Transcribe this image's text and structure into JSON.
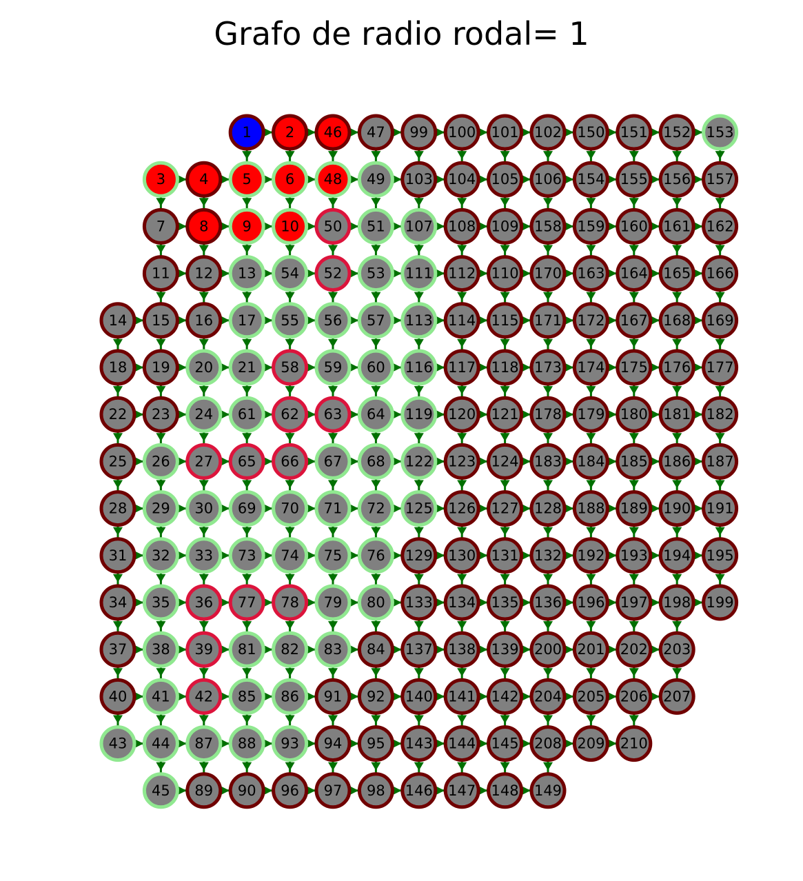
{
  "title": "Grafo de radio rodal= 1",
  "colors": {
    "edge": "#007000",
    "node_fill_default": "#808080",
    "fill_source": "#0000ff",
    "fill_reached": "#ff0000",
    "border_dark": "#700000",
    "border_light": "#90e890",
    "border_crimson": "#dc143c"
  },
  "rows": [
    [
      null,
      null,
      null,
      {
        "id": 1,
        "f": "source",
        "b": "dark"
      },
      {
        "id": 2,
        "f": "reached",
        "b": "dark"
      },
      {
        "id": 46,
        "f": "reached",
        "b": "dark"
      },
      {
        "id": 47,
        "b": "dark"
      },
      {
        "id": 99,
        "b": "dark"
      },
      {
        "id": 100,
        "b": "dark"
      },
      {
        "id": 101,
        "b": "dark"
      },
      {
        "id": 102,
        "b": "dark"
      },
      {
        "id": 150,
        "b": "dark"
      },
      {
        "id": 151,
        "b": "dark"
      },
      {
        "id": 152,
        "b": "dark"
      },
      {
        "id": 153,
        "b": "light"
      }
    ],
    [
      null,
      {
        "id": 3,
        "f": "reached",
        "b": "light"
      },
      {
        "id": 4,
        "f": "reached",
        "b": "dark"
      },
      {
        "id": 5,
        "f": "reached",
        "b": "light"
      },
      {
        "id": 6,
        "f": "reached",
        "b": "light"
      },
      {
        "id": 48,
        "f": "reached",
        "b": "light"
      },
      {
        "id": 49,
        "b": "light"
      },
      {
        "id": 103,
        "b": "dark"
      },
      {
        "id": 104,
        "b": "dark"
      },
      {
        "id": 105,
        "b": "dark"
      },
      {
        "id": 106,
        "b": "dark"
      },
      {
        "id": 154,
        "b": "dark"
      },
      {
        "id": 155,
        "b": "dark"
      },
      {
        "id": 156,
        "b": "dark"
      },
      {
        "id": 157,
        "b": "dark"
      }
    ],
    [
      null,
      {
        "id": 7,
        "b": "dark"
      },
      {
        "id": 8,
        "f": "reached",
        "b": "dark"
      },
      {
        "id": 9,
        "f": "reached",
        "b": "light"
      },
      {
        "id": 10,
        "f": "reached",
        "b": "light"
      },
      {
        "id": 50,
        "b": "crimson"
      },
      {
        "id": 51,
        "b": "light"
      },
      {
        "id": 107,
        "b": "light"
      },
      {
        "id": 108,
        "b": "dark"
      },
      {
        "id": 109,
        "b": "dark"
      },
      {
        "id": 158,
        "b": "dark"
      },
      {
        "id": 159,
        "b": "dark"
      },
      {
        "id": 160,
        "b": "dark"
      },
      {
        "id": 161,
        "b": "dark"
      },
      {
        "id": 162,
        "b": "dark"
      }
    ],
    [
      null,
      {
        "id": 11,
        "b": "dark"
      },
      {
        "id": 12,
        "b": "dark"
      },
      {
        "id": 13,
        "b": "light"
      },
      {
        "id": 54,
        "b": "light"
      },
      {
        "id": 52,
        "b": "crimson"
      },
      {
        "id": 53,
        "b": "light"
      },
      {
        "id": 111,
        "b": "light"
      },
      {
        "id": 112,
        "b": "dark"
      },
      {
        "id": 110,
        "b": "dark"
      },
      {
        "id": 170,
        "b": "dark"
      },
      {
        "id": 163,
        "b": "dark"
      },
      {
        "id": 164,
        "b": "dark"
      },
      {
        "id": 165,
        "b": "dark"
      },
      {
        "id": 166,
        "b": "dark"
      }
    ],
    [
      {
        "id": 14,
        "b": "dark"
      },
      {
        "id": 15,
        "b": "dark"
      },
      {
        "id": 16,
        "b": "dark"
      },
      {
        "id": 17,
        "b": "light"
      },
      {
        "id": 55,
        "b": "light"
      },
      {
        "id": 56,
        "b": "light"
      },
      {
        "id": 57,
        "b": "light"
      },
      {
        "id": 113,
        "b": "light"
      },
      {
        "id": 114,
        "b": "dark"
      },
      {
        "id": 115,
        "b": "dark"
      },
      {
        "id": 171,
        "b": "dark"
      },
      {
        "id": 172,
        "b": "dark"
      },
      {
        "id": 167,
        "b": "dark"
      },
      {
        "id": 168,
        "b": "dark"
      },
      {
        "id": 169,
        "b": "dark"
      }
    ],
    [
      {
        "id": 18,
        "b": "dark"
      },
      {
        "id": 19,
        "b": "dark"
      },
      {
        "id": 20,
        "b": "light"
      },
      {
        "id": 21,
        "b": "light"
      },
      {
        "id": 58,
        "b": "crimson"
      },
      {
        "id": 59,
        "b": "light"
      },
      {
        "id": 60,
        "b": "light"
      },
      {
        "id": 116,
        "b": "light"
      },
      {
        "id": 117,
        "b": "dark"
      },
      {
        "id": 118,
        "b": "dark"
      },
      {
        "id": 173,
        "b": "dark"
      },
      {
        "id": 174,
        "b": "dark"
      },
      {
        "id": 175,
        "b": "dark"
      },
      {
        "id": 176,
        "b": "dark"
      },
      {
        "id": 177,
        "b": "dark"
      }
    ],
    [
      {
        "id": 22,
        "b": "dark"
      },
      {
        "id": 23,
        "b": "dark"
      },
      {
        "id": 24,
        "b": "light"
      },
      {
        "id": 61,
        "b": "light"
      },
      {
        "id": 62,
        "b": "crimson"
      },
      {
        "id": 63,
        "b": "crimson"
      },
      {
        "id": 64,
        "b": "light"
      },
      {
        "id": 119,
        "b": "light"
      },
      {
        "id": 120,
        "b": "dark"
      },
      {
        "id": 121,
        "b": "dark"
      },
      {
        "id": 178,
        "b": "dark"
      },
      {
        "id": 179,
        "b": "dark"
      },
      {
        "id": 180,
        "b": "dark"
      },
      {
        "id": 181,
        "b": "dark"
      },
      {
        "id": 182,
        "b": "dark"
      }
    ],
    [
      {
        "id": 25,
        "b": "dark"
      },
      {
        "id": 26,
        "b": "light"
      },
      {
        "id": 27,
        "b": "crimson"
      },
      {
        "id": 65,
        "b": "crimson"
      },
      {
        "id": 66,
        "b": "crimson"
      },
      {
        "id": 67,
        "b": "light"
      },
      {
        "id": 68,
        "b": "light"
      },
      {
        "id": 122,
        "b": "light"
      },
      {
        "id": 123,
        "b": "dark"
      },
      {
        "id": 124,
        "b": "dark"
      },
      {
        "id": 183,
        "b": "dark"
      },
      {
        "id": 184,
        "b": "dark"
      },
      {
        "id": 185,
        "b": "dark"
      },
      {
        "id": 186,
        "b": "dark"
      },
      {
        "id": 187,
        "b": "dark"
      }
    ],
    [
      {
        "id": 28,
        "b": "dark"
      },
      {
        "id": 29,
        "b": "light"
      },
      {
        "id": 30,
        "b": "light"
      },
      {
        "id": 69,
        "b": "light"
      },
      {
        "id": 70,
        "b": "light"
      },
      {
        "id": 71,
        "b": "light"
      },
      {
        "id": 72,
        "b": "light"
      },
      {
        "id": 125,
        "b": "light"
      },
      {
        "id": 126,
        "b": "dark"
      },
      {
        "id": 127,
        "b": "dark"
      },
      {
        "id": 128,
        "b": "dark"
      },
      {
        "id": 188,
        "b": "dark"
      },
      {
        "id": 189,
        "b": "dark"
      },
      {
        "id": 190,
        "b": "dark"
      },
      {
        "id": 191,
        "b": "dark"
      }
    ],
    [
      {
        "id": 31,
        "b": "dark"
      },
      {
        "id": 32,
        "b": "light"
      },
      {
        "id": 33,
        "b": "light"
      },
      {
        "id": 73,
        "b": "light"
      },
      {
        "id": 74,
        "b": "light"
      },
      {
        "id": 75,
        "b": "light"
      },
      {
        "id": 76,
        "b": "light"
      },
      {
        "id": 129,
        "b": "dark"
      },
      {
        "id": 130,
        "b": "dark"
      },
      {
        "id": 131,
        "b": "dark"
      },
      {
        "id": 132,
        "b": "dark"
      },
      {
        "id": 192,
        "b": "dark"
      },
      {
        "id": 193,
        "b": "dark"
      },
      {
        "id": 194,
        "b": "dark"
      },
      {
        "id": 195,
        "b": "dark"
      }
    ],
    [
      {
        "id": 34,
        "b": "dark"
      },
      {
        "id": 35,
        "b": "light"
      },
      {
        "id": 36,
        "b": "crimson"
      },
      {
        "id": 77,
        "b": "crimson"
      },
      {
        "id": 78,
        "b": "crimson"
      },
      {
        "id": 79,
        "b": "light"
      },
      {
        "id": 80,
        "b": "light"
      },
      {
        "id": 133,
        "b": "dark"
      },
      {
        "id": 134,
        "b": "dark"
      },
      {
        "id": 135,
        "b": "dark"
      },
      {
        "id": 136,
        "b": "dark"
      },
      {
        "id": 196,
        "b": "dark"
      },
      {
        "id": 197,
        "b": "dark"
      },
      {
        "id": 198,
        "b": "dark"
      },
      {
        "id": 199,
        "b": "dark"
      }
    ],
    [
      {
        "id": 37,
        "b": "dark"
      },
      {
        "id": 38,
        "b": "light"
      },
      {
        "id": 39,
        "b": "crimson"
      },
      {
        "id": 81,
        "b": "light"
      },
      {
        "id": 82,
        "b": "light"
      },
      {
        "id": 83,
        "b": "light"
      },
      {
        "id": 84,
        "b": "dark"
      },
      {
        "id": 137,
        "b": "dark"
      },
      {
        "id": 138,
        "b": "dark"
      },
      {
        "id": 139,
        "b": "dark"
      },
      {
        "id": 200,
        "b": "dark"
      },
      {
        "id": 201,
        "b": "dark"
      },
      {
        "id": 202,
        "b": "dark"
      },
      {
        "id": 203,
        "b": "dark"
      },
      null
    ],
    [
      {
        "id": 40,
        "b": "dark"
      },
      {
        "id": 41,
        "b": "light"
      },
      {
        "id": 42,
        "b": "crimson"
      },
      {
        "id": 85,
        "b": "light"
      },
      {
        "id": 86,
        "b": "light"
      },
      {
        "id": 91,
        "b": "dark"
      },
      {
        "id": 92,
        "b": "dark"
      },
      {
        "id": 140,
        "b": "dark"
      },
      {
        "id": 141,
        "b": "dark"
      },
      {
        "id": 142,
        "b": "dark"
      },
      {
        "id": 204,
        "b": "dark"
      },
      {
        "id": 205,
        "b": "dark"
      },
      {
        "id": 206,
        "b": "dark"
      },
      {
        "id": 207,
        "b": "dark"
      },
      null
    ],
    [
      {
        "id": 43,
        "b": "light"
      },
      {
        "id": 44,
        "b": "light"
      },
      {
        "id": 87,
        "b": "light"
      },
      {
        "id": 88,
        "b": "light"
      },
      {
        "id": 93,
        "b": "light"
      },
      {
        "id": 94,
        "b": "dark"
      },
      {
        "id": 95,
        "b": "dark"
      },
      {
        "id": 143,
        "b": "dark"
      },
      {
        "id": 144,
        "b": "dark"
      },
      {
        "id": 145,
        "b": "dark"
      },
      {
        "id": 208,
        "b": "dark"
      },
      {
        "id": 209,
        "b": "dark"
      },
      {
        "id": 210,
        "b": "dark"
      },
      null,
      null
    ],
    [
      null,
      {
        "id": 45,
        "b": "light"
      },
      {
        "id": 89,
        "b": "dark"
      },
      {
        "id": 90,
        "b": "dark"
      },
      {
        "id": 96,
        "b": "dark"
      },
      {
        "id": 97,
        "b": "dark"
      },
      {
        "id": 98,
        "b": "dark"
      },
      {
        "id": 146,
        "b": "dark"
      },
      {
        "id": 147,
        "b": "dark"
      },
      {
        "id": 148,
        "b": "dark"
      },
      {
        "id": 149,
        "b": "dark"
      },
      null,
      null,
      null,
      null
    ]
  ]
}
